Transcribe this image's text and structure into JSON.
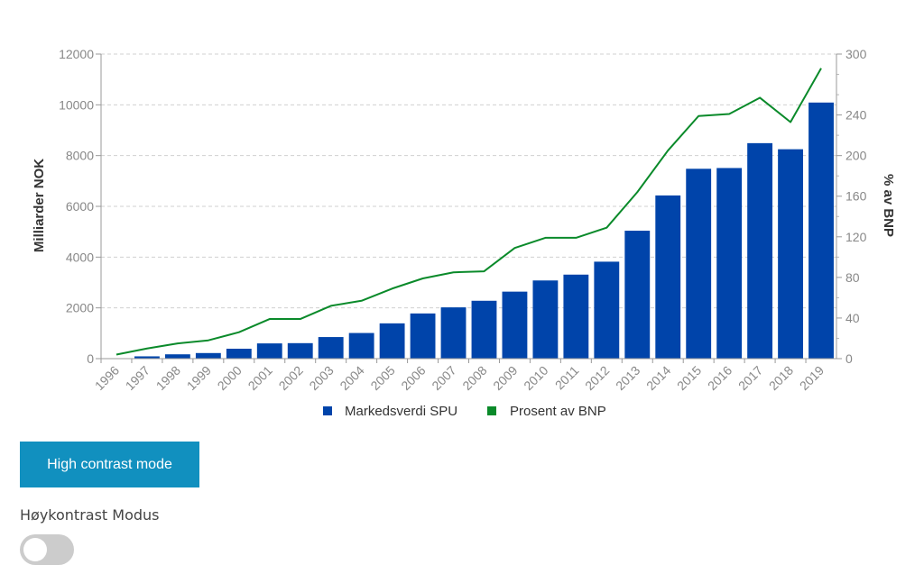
{
  "chart_data": {
    "type": "bar",
    "categories": [
      "1996",
      "1997",
      "1998",
      "1999",
      "2000",
      "2001",
      "2002",
      "2003",
      "2004",
      "2005",
      "2006",
      "2007",
      "2008",
      "2009",
      "2010",
      "2011",
      "2012",
      "2013",
      "2014",
      "2015",
      "2016",
      "2017",
      "2018",
      "2019"
    ],
    "series": [
      {
        "name": "Markedsverdi SPU",
        "type": "bar",
        "axis": "left",
        "color": "#0044aa",
        "values": [
          0,
          90,
          170,
          220,
          390,
          600,
          610,
          850,
          1010,
          1390,
          1780,
          2020,
          2280,
          2640,
          3080,
          3310,
          3820,
          5040,
          6430,
          7480,
          7510,
          8490,
          8250,
          10090
        ]
      },
      {
        "name": "Prosent av BNP",
        "type": "line",
        "axis": "right",
        "color": "#0a8a2a",
        "values": [
          4,
          10,
          15,
          18,
          26,
          39,
          39,
          52,
          57,
          69,
          79,
          85,
          86,
          109,
          119,
          119,
          129,
          164,
          205,
          239,
          241,
          257,
          233,
          286
        ]
      }
    ],
    "yaxis_left": {
      "label": "Milliarder NOK",
      "range": [
        0,
        12000
      ],
      "ticks": [
        "0",
        "2000",
        "4000",
        "6000",
        "8000",
        "10000",
        "12000"
      ]
    },
    "yaxis_right": {
      "label": "% av BNP",
      "range": [
        0,
        300
      ],
      "ticks": [
        "0",
        "40",
        "80",
        "120",
        "160",
        "200",
        "240",
        "300"
      ]
    },
    "legend_position": "bottom",
    "grid": true
  },
  "controls": {
    "high_contrast_button": "High contrast mode",
    "toggle_label": "Høykontrast Modus"
  },
  "colors": {
    "bar": "#0044aa",
    "line": "#0a8a2a",
    "button_bg": "#1190bf",
    "toggle_off": "#cccccc"
  }
}
